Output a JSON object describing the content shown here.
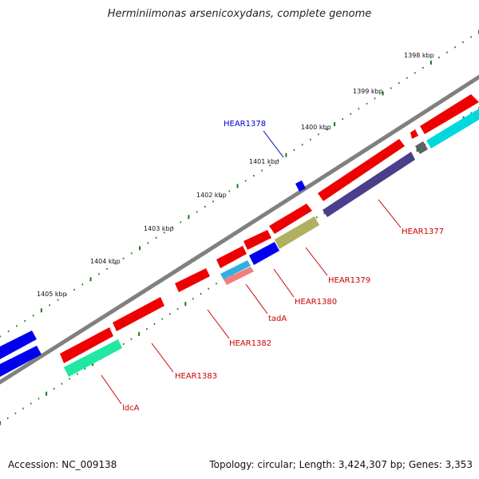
{
  "title": "Herminiimonas arsenicoxydans, complete genome",
  "footer": {
    "accession": "Accession: NC_009138",
    "summary": "Topology: circular; Length: 3,424,307 bp; Genes: 3,353"
  },
  "colors": {
    "backbone": "#808080",
    "tick": "#1a7a1a",
    "label_red": "#cc0000",
    "label_blue": "#0000cc"
  },
  "scale_labels": [
    "1398 kbp",
    "1399 kbp",
    "1400 kbp",
    "1401 kbp",
    "1402 kbp",
    "1403 kbp",
    "1404 kbp",
    "1405 kbp"
  ],
  "gene_labels": [
    {
      "id": "HEAR1378",
      "text": "HEAR1378",
      "color": "blue"
    },
    {
      "id": "HEAR1377",
      "text": "HEAR1377",
      "color": "red"
    },
    {
      "id": "HEAR1379",
      "text": "HEAR1379",
      "color": "red"
    },
    {
      "id": "HEAR1380",
      "text": "HEAR1380",
      "color": "red"
    },
    {
      "id": "tadA",
      "text": "tadA",
      "color": "red"
    },
    {
      "id": "HEAR1382",
      "text": "HEAR1382",
      "color": "red"
    },
    {
      "id": "HEAR1383",
      "text": "HEAR1383",
      "color": "red"
    },
    {
      "id": "ldcA",
      "text": "ldcA",
      "color": "red"
    }
  ]
}
